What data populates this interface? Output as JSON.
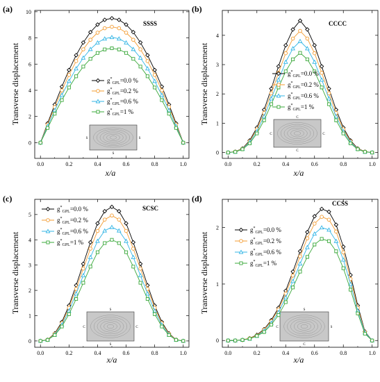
{
  "chart_data": [
    {
      "type": "line",
      "panel_label": "(a)",
      "bc_label": "SSSS",
      "ylabel": "Transverse displacement",
      "xlabel": "x/a",
      "xlim": [
        -0.04,
        1.04
      ],
      "ylim": [
        -1.2,
        10.1
      ],
      "xticks": [
        0.0,
        0.2,
        0.4,
        0.6,
        0.8,
        1.0
      ],
      "xtick_labels": [
        "0.0",
        "0.2",
        "0.4",
        "0.6",
        "0.8",
        "1.0"
      ],
      "yticks": [
        0,
        2,
        4,
        6,
        8,
        10
      ],
      "ytick_labels": [
        "0",
        "2",
        "4",
        "6",
        "8",
        "10"
      ],
      "plate_edges": {
        "top": "",
        "bottom": "S",
        "left": "S",
        "right": "S"
      },
      "x": [
        0.0,
        0.05,
        0.1,
        0.15,
        0.2,
        0.25,
        0.3,
        0.35,
        0.4,
        0.45,
        0.5,
        0.55,
        0.6,
        0.65,
        0.7,
        0.75,
        0.8,
        0.85,
        0.9,
        0.95,
        1.0
      ],
      "series": [
        {
          "name": "0.0 %",
          "marker": "diamond",
          "color": "#000000",
          "values": [
            0.0,
            1.47,
            2.91,
            4.28,
            5.55,
            6.68,
            7.65,
            8.44,
            9.02,
            9.38,
            9.5,
            9.38,
            9.02,
            8.44,
            7.65,
            6.68,
            5.55,
            4.28,
            2.91,
            1.47,
            0.0
          ]
        },
        {
          "name": "0.2 %",
          "marker": "circle",
          "color": "#f39c32",
          "values": [
            0.0,
            1.38,
            2.72,
            3.99,
            5.17,
            6.23,
            7.13,
            7.86,
            8.4,
            8.74,
            8.85,
            8.74,
            8.4,
            7.86,
            7.13,
            6.23,
            5.17,
            3.99,
            2.72,
            1.38,
            0.0
          ]
        },
        {
          "name": "0.6 %",
          "marker": "triangle",
          "color": "#33b5e5",
          "values": [
            0.0,
            1.25,
            2.47,
            3.63,
            4.7,
            5.66,
            6.48,
            7.14,
            7.64,
            7.94,
            8.05,
            7.94,
            7.64,
            7.14,
            6.48,
            5.66,
            4.7,
            3.63,
            2.47,
            1.25,
            0.0
          ]
        },
        {
          "name": "1 %",
          "marker": "square",
          "color": "#3aa83a",
          "values": [
            0.0,
            1.12,
            2.21,
            3.25,
            4.21,
            5.07,
            5.81,
            6.4,
            6.85,
            7.12,
            7.21,
            7.12,
            6.85,
            6.4,
            5.81,
            5.07,
            4.21,
            3.25,
            2.21,
            1.12,
            0.0
          ]
        }
      ]
    },
    {
      "type": "line",
      "panel_label": "(b)",
      "bc_label": "CCCC",
      "ylabel": "Transverse displacement",
      "xlabel": "x/a",
      "xlim": [
        -0.04,
        1.04
      ],
      "ylim": [
        -0.2,
        4.85
      ],
      "xticks": [
        0.0,
        0.2,
        0.4,
        0.6,
        0.8,
        1.0
      ],
      "xtick_labels": [
        "0.0",
        "0.2",
        "0.4",
        "0.6",
        "0.8",
        "1.0"
      ],
      "yticks": [
        0,
        1,
        2,
        3,
        4
      ],
      "ytick_labels": [
        "0",
        "1",
        "2",
        "3",
        "4"
      ],
      "plate_edges": {
        "top": "C",
        "bottom": "C",
        "left": "C",
        "right": "C"
      },
      "x": [
        0.0,
        0.05,
        0.1,
        0.15,
        0.2,
        0.25,
        0.3,
        0.35,
        0.4,
        0.45,
        0.5,
        0.55,
        0.6,
        0.65,
        0.7,
        0.75,
        0.8,
        0.85,
        0.9,
        0.95,
        1.0
      ],
      "series": [
        {
          "name": "0.0 %",
          "marker": "diamond",
          "color": "#000000",
          "values": [
            0.0,
            0.03,
            0.14,
            0.41,
            0.85,
            1.46,
            2.18,
            2.94,
            3.66,
            4.2,
            4.5,
            4.2,
            3.66,
            2.94,
            2.18,
            1.46,
            0.85,
            0.41,
            0.14,
            0.03,
            0.0
          ]
        },
        {
          "name": "0.2 %",
          "marker": "circle",
          "color": "#f39c32",
          "values": [
            0.0,
            0.03,
            0.13,
            0.38,
            0.79,
            1.35,
            2.02,
            2.72,
            3.39,
            3.89,
            4.15,
            3.89,
            3.39,
            2.72,
            2.02,
            1.35,
            0.79,
            0.38,
            0.13,
            0.03,
            0.0
          ]
        },
        {
          "name": "0.6 %",
          "marker": "triangle",
          "color": "#33b5e5",
          "values": [
            0.0,
            0.02,
            0.12,
            0.35,
            0.72,
            1.23,
            1.84,
            2.48,
            3.09,
            3.55,
            3.8,
            3.55,
            3.09,
            2.48,
            1.84,
            1.23,
            0.72,
            0.35,
            0.12,
            0.02,
            0.0
          ]
        },
        {
          "name": "1 %",
          "marker": "square",
          "color": "#3aa83a",
          "values": [
            0.0,
            0.02,
            0.11,
            0.31,
            0.65,
            1.1,
            1.65,
            2.22,
            2.77,
            3.18,
            3.4,
            3.18,
            2.77,
            2.22,
            1.65,
            1.1,
            0.65,
            0.31,
            0.11,
            0.02,
            0.0
          ]
        }
      ]
    },
    {
      "type": "line",
      "panel_label": "(c)",
      "bc_label": "SCSC",
      "ylabel": "Transverse displacement",
      "xlabel": "x/a",
      "xlim": [
        -0.04,
        1.04
      ],
      "ylim": [
        -0.25,
        5.6
      ],
      "xticks": [
        0.0,
        0.2,
        0.4,
        0.6,
        0.8,
        1.0
      ],
      "xtick_labels": [
        "0.0",
        "0.2",
        "0.4",
        "0.6",
        "0.8",
        "1.0"
      ],
      "yticks": [
        0,
        1,
        2,
        3,
        4,
        5
      ],
      "ytick_labels": [
        "0",
        "1",
        "2",
        "3",
        "4",
        "5"
      ],
      "plate_edges": {
        "top": "S",
        "bottom": "S",
        "left": "C",
        "right": "C"
      },
      "x": [
        0.0,
        0.05,
        0.1,
        0.15,
        0.2,
        0.25,
        0.3,
        0.35,
        0.4,
        0.45,
        0.5,
        0.55,
        0.6,
        0.65,
        0.7,
        0.75,
        0.8,
        0.85,
        0.9,
        0.95,
        1.0
      ],
      "series": [
        {
          "name": "0.0 %",
          "marker": "diamond",
          "color": "#000000",
          "values": [
            0.0,
            0.05,
            0.3,
            0.75,
            1.4,
            2.2,
            3.05,
            3.9,
            4.65,
            5.13,
            5.3,
            5.13,
            4.65,
            3.9,
            3.05,
            2.2,
            1.4,
            0.75,
            0.3,
            0.05,
            0.0
          ]
        },
        {
          "name": "0.2 %",
          "marker": "circle",
          "color": "#f39c32",
          "values": [
            0.0,
            0.05,
            0.28,
            0.7,
            1.31,
            2.06,
            2.86,
            3.65,
            4.35,
            4.8,
            4.96,
            4.8,
            4.35,
            3.65,
            2.86,
            2.06,
            1.31,
            0.7,
            0.28,
            0.05,
            0.0
          ]
        },
        {
          "name": "0.6 %",
          "marker": "triangle",
          "color": "#33b5e5",
          "values": [
            0.0,
            0.04,
            0.25,
            0.64,
            1.19,
            1.87,
            2.59,
            3.31,
            3.95,
            4.36,
            4.5,
            4.36,
            3.95,
            3.31,
            2.59,
            1.87,
            1.19,
            0.64,
            0.25,
            0.04,
            0.0
          ]
        },
        {
          "name": "1 %",
          "marker": "square",
          "color": "#3aa83a",
          "values": [
            0.0,
            0.04,
            0.23,
            0.57,
            1.06,
            1.66,
            2.3,
            2.94,
            3.51,
            3.87,
            4.0,
            3.87,
            3.51,
            2.94,
            2.3,
            1.66,
            1.06,
            0.57,
            0.23,
            0.04,
            0.0
          ]
        }
      ]
    },
    {
      "type": "line",
      "panel_label": "(d)",
      "bc_label": "CCSS",
      "ylabel": "Transverse displacement",
      "xlabel": "x/a",
      "xlim": [
        -0.04,
        1.04
      ],
      "ylim": [
        -0.12,
        2.5
      ],
      "xticks": [
        0.0,
        0.2,
        0.4,
        0.6,
        0.8,
        1.0
      ],
      "xtick_labels": [
        "0.0",
        "0.2",
        "0.4",
        "0.6",
        "0.8",
        "1.0"
      ],
      "yticks": [
        0,
        1,
        2
      ],
      "ytick_labels": [
        "0",
        "1",
        "2"
      ],
      "plate_edges": {
        "top": "S",
        "bottom": "C",
        "left": "C",
        "right": "S"
      },
      "x": [
        0.0,
        0.05,
        0.1,
        0.15,
        0.2,
        0.25,
        0.3,
        0.35,
        0.4,
        0.45,
        0.5,
        0.55,
        0.6,
        0.65,
        0.7,
        0.75,
        0.8,
        0.85,
        0.9,
        0.95,
        1.0
      ],
      "series": [
        {
          "name": "0.0 %",
          "marker": "diamond",
          "color": "#000000",
          "values": [
            0.0,
            0.0,
            0.01,
            0.04,
            0.1,
            0.2,
            0.36,
            0.58,
            0.88,
            1.22,
            1.58,
            1.92,
            2.2,
            2.33,
            2.28,
            2.05,
            1.66,
            1.16,
            0.62,
            0.16,
            0.0
          ]
        },
        {
          "name": "0.2 %",
          "marker": "circle",
          "color": "#f39c32",
          "values": [
            0.0,
            0.0,
            0.01,
            0.04,
            0.09,
            0.19,
            0.34,
            0.55,
            0.83,
            1.15,
            1.49,
            1.81,
            2.07,
            2.19,
            2.14,
            1.93,
            1.56,
            1.09,
            0.58,
            0.15,
            0.0
          ]
        },
        {
          "name": "0.6 %",
          "marker": "triangle",
          "color": "#33b5e5",
          "values": [
            0.0,
            0.0,
            0.01,
            0.03,
            0.08,
            0.17,
            0.31,
            0.5,
            0.76,
            1.05,
            1.36,
            1.65,
            1.89,
            2.0,
            1.96,
            1.76,
            1.43,
            1.0,
            0.53,
            0.14,
            0.0
          ]
        },
        {
          "name": "1 %",
          "marker": "square",
          "color": "#3aa83a",
          "values": [
            0.0,
            0.0,
            0.01,
            0.03,
            0.08,
            0.15,
            0.28,
            0.45,
            0.68,
            0.94,
            1.22,
            1.48,
            1.7,
            1.8,
            1.76,
            1.58,
            1.28,
            0.9,
            0.48,
            0.12,
            0.0
          ]
        }
      ]
    }
  ],
  "legend": {
    "prefix": "g",
    "superscript": "*",
    "subscript": "GPL",
    "separator": "="
  }
}
